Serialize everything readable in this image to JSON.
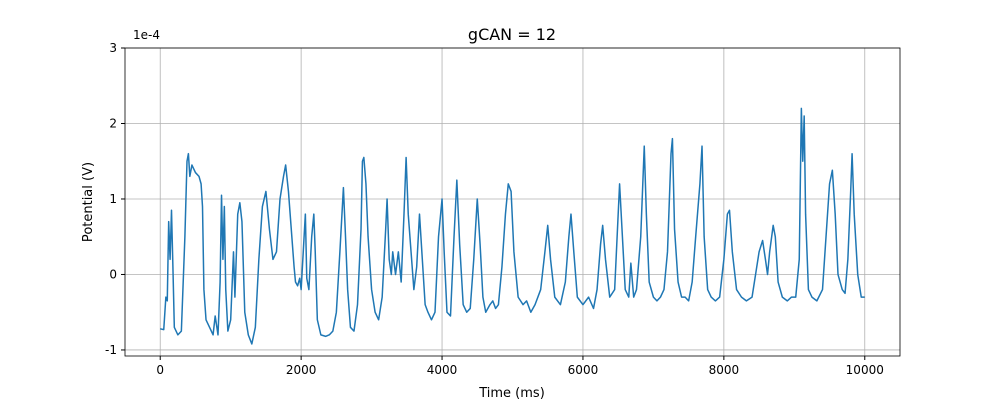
{
  "chart_data": {
    "type": "line",
    "title": "gCAN = 12",
    "x_label": "Time (ms)",
    "y_label": "Potential (V)",
    "y_offset_label": "1e-4",
    "color": "#1f77b4",
    "grid": true,
    "xlim": [
      -500,
      10500
    ],
    "xticks": [
      0,
      2000,
      4000,
      6000,
      8000,
      10000
    ],
    "ylim": [
      -1.08,
      3
    ],
    "yticks": [
      -1,
      0,
      1,
      2,
      3
    ],
    "x": [
      0,
      50,
      80,
      100,
      120,
      140,
      160,
      180,
      200,
      250,
      300,
      350,
      380,
      400,
      420,
      450,
      500,
      550,
      580,
      600,
      620,
      650,
      700,
      750,
      780,
      820,
      850,
      870,
      890,
      910,
      930,
      960,
      1000,
      1040,
      1060,
      1100,
      1130,
      1160,
      1200,
      1250,
      1300,
      1350,
      1400,
      1450,
      1500,
      1550,
      1600,
      1650,
      1700,
      1750,
      1780,
      1820,
      1860,
      1900,
      1920,
      1950,
      1980,
      2000,
      2030,
      2060,
      2080,
      2110,
      2150,
      2180,
      2200,
      2230,
      2280,
      2350,
      2400,
      2450,
      2500,
      2550,
      2600,
      2630,
      2660,
      2700,
      2750,
      2800,
      2850,
      2870,
      2890,
      2920,
      2950,
      3000,
      3050,
      3100,
      3150,
      3200,
      3220,
      3250,
      3280,
      3300,
      3340,
      3380,
      3420,
      3460,
      3490,
      3520,
      3560,
      3600,
      3640,
      3680,
      3720,
      3760,
      3800,
      3850,
      3900,
      3950,
      4000,
      4030,
      4070,
      4120,
      4170,
      4210,
      4250,
      4300,
      4350,
      4400,
      4450,
      4500,
      4540,
      4580,
      4620,
      4680,
      4720,
      4760,
      4800,
      4850,
      4900,
      4940,
      4980,
      5020,
      5080,
      5150,
      5200,
      5260,
      5320,
      5400,
      5460,
      5500,
      5540,
      5600,
      5680,
      5750,
      5800,
      5830,
      5870,
      5920,
      6000,
      6080,
      6150,
      6200,
      6250,
      6280,
      6320,
      6380,
      6450,
      6480,
      6520,
      6560,
      6600,
      6650,
      6680,
      6720,
      6760,
      6820,
      6870,
      6900,
      6940,
      7000,
      7050,
      7100,
      7150,
      7200,
      7250,
      7270,
      7300,
      7350,
      7400,
      7450,
      7500,
      7550,
      7600,
      7660,
      7690,
      7720,
      7770,
      7820,
      7880,
      7940,
      8000,
      8050,
      8080,
      8120,
      8180,
      8250,
      8320,
      8400,
      8450,
      8500,
      8550,
      8590,
      8620,
      8650,
      8700,
      8730,
      8770,
      8830,
      8900,
      8960,
      9020,
      9070,
      9100,
      9120,
      9140,
      9160,
      9200,
      9250,
      9320,
      9400,
      9450,
      9500,
      9540,
      9580,
      9620,
      9680,
      9720,
      9760,
      9800,
      9820,
      9850,
      9900,
      9950,
      10000
    ],
    "values": [
      -0.72,
      -0.73,
      -0.3,
      -0.35,
      0.7,
      0.2,
      0.85,
      0.1,
      -0.7,
      -0.8,
      -0.75,
      0.5,
      1.5,
      1.6,
      1.3,
      1.45,
      1.35,
      1.3,
      1.2,
      0.9,
      -0.2,
      -0.6,
      -0.7,
      -0.8,
      -0.55,
      -0.8,
      -0.1,
      1.05,
      0.2,
      0.9,
      -0.2,
      -0.75,
      -0.6,
      0.3,
      -0.3,
      0.8,
      0.95,
      0.7,
      -0.5,
      -0.8,
      -0.92,
      -0.7,
      0.2,
      0.9,
      1.1,
      0.6,
      0.2,
      0.3,
      1.0,
      1.3,
      1.45,
      1.1,
      0.6,
      0.1,
      -0.1,
      -0.15,
      -0.05,
      -0.2,
      0.3,
      0.8,
      -0.05,
      -0.2,
      0.5,
      0.8,
      0.3,
      -0.6,
      -0.8,
      -0.82,
      -0.8,
      -0.75,
      -0.5,
      0.3,
      1.15,
      0.5,
      -0.2,
      -0.7,
      -0.75,
      -0.4,
      0.6,
      1.5,
      1.55,
      1.2,
      0.5,
      -0.2,
      -0.5,
      -0.6,
      -0.3,
      0.6,
      1.0,
      0.2,
      0.0,
      0.3,
      0.0,
      0.3,
      -0.1,
      0.8,
      1.55,
      0.8,
      0.3,
      -0.2,
      0.1,
      0.8,
      0.2,
      -0.4,
      -0.5,
      -0.6,
      -0.5,
      0.5,
      1.0,
      0.3,
      -0.5,
      -0.55,
      0.5,
      1.25,
      0.4,
      -0.4,
      -0.5,
      -0.45,
      0.2,
      1.0,
      0.4,
      -0.3,
      -0.5,
      -0.4,
      -0.35,
      -0.45,
      -0.4,
      0.1,
      0.8,
      1.2,
      1.1,
      0.3,
      -0.3,
      -0.4,
      -0.35,
      -0.5,
      -0.4,
      -0.2,
      0.3,
      0.65,
      0.2,
      -0.3,
      -0.4,
      -0.1,
      0.5,
      0.8,
      0.3,
      -0.3,
      -0.4,
      -0.3,
      -0.45,
      -0.2,
      0.4,
      0.65,
      0.2,
      -0.3,
      -0.2,
      0.4,
      1.2,
      0.5,
      -0.2,
      -0.3,
      0.15,
      -0.3,
      -0.2,
      0.5,
      1.7,
      0.8,
      -0.1,
      -0.3,
      -0.35,
      -0.3,
      -0.2,
      0.3,
      1.6,
      1.8,
      0.6,
      -0.1,
      -0.3,
      -0.3,
      -0.35,
      -0.1,
      0.5,
      1.2,
      1.7,
      0.5,
      -0.2,
      -0.3,
      -0.35,
      -0.3,
      0.2,
      0.8,
      0.85,
      0.3,
      -0.2,
      -0.3,
      -0.35,
      -0.3,
      0.0,
      0.3,
      0.45,
      0.2,
      0.0,
      0.3,
      0.65,
      0.5,
      -0.1,
      -0.3,
      -0.35,
      -0.3,
      -0.3,
      0.2,
      2.2,
      1.5,
      2.1,
      0.8,
      -0.2,
      -0.3,
      -0.35,
      -0.2,
      0.5,
      1.2,
      1.38,
      0.8,
      0.0,
      -0.2,
      -0.25,
      0.2,
      1.1,
      1.6,
      0.8,
      0.0,
      -0.3,
      -0.3
    ]
  }
}
